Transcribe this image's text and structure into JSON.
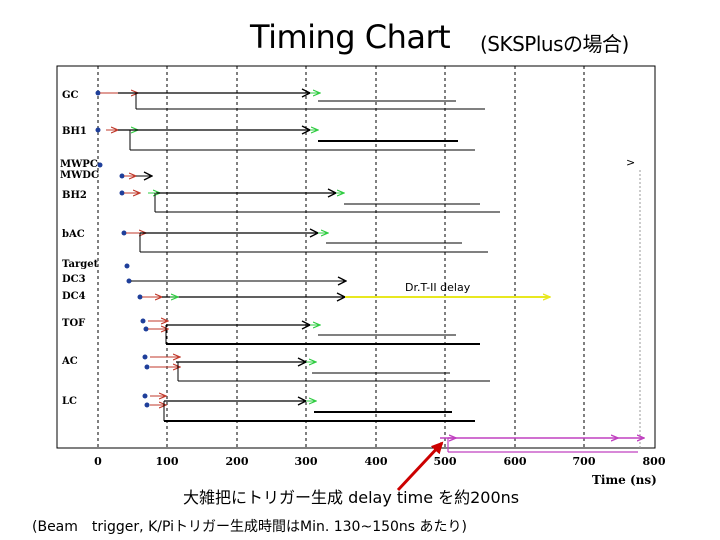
{
  "title": "Timing Chart",
  "subtitle": "(SKSPlusの場合)",
  "caption_main": "大雑把にトリガー生成 delay time を約200ns",
  "caption_note": "(Beam　trigger,  K/Piトリガー生成時間はMin. 130~150ns あたり)",
  "chart_data": {
    "type": "diagram",
    "xlabel": "Time (ns)",
    "x_ticks": [
      0,
      100,
      200,
      300,
      400,
      500,
      600,
      700,
      800
    ],
    "annotation": "Dr.T-II delay",
    "gate_marker": ">",
    "detectors": [
      "GC",
      "BH1",
      "MWPC",
      "MWDC",
      "BH2",
      "bAC",
      "Target",
      "DC3",
      "DC4",
      "TOF",
      "AC",
      "LC"
    ],
    "colors": {
      "signal": "#000000",
      "dot": "#1f3f9a",
      "red": "#c0392b",
      "green": "#2ecc40",
      "delay": "#e8e820",
      "trigger": "#c040c0"
    }
  }
}
